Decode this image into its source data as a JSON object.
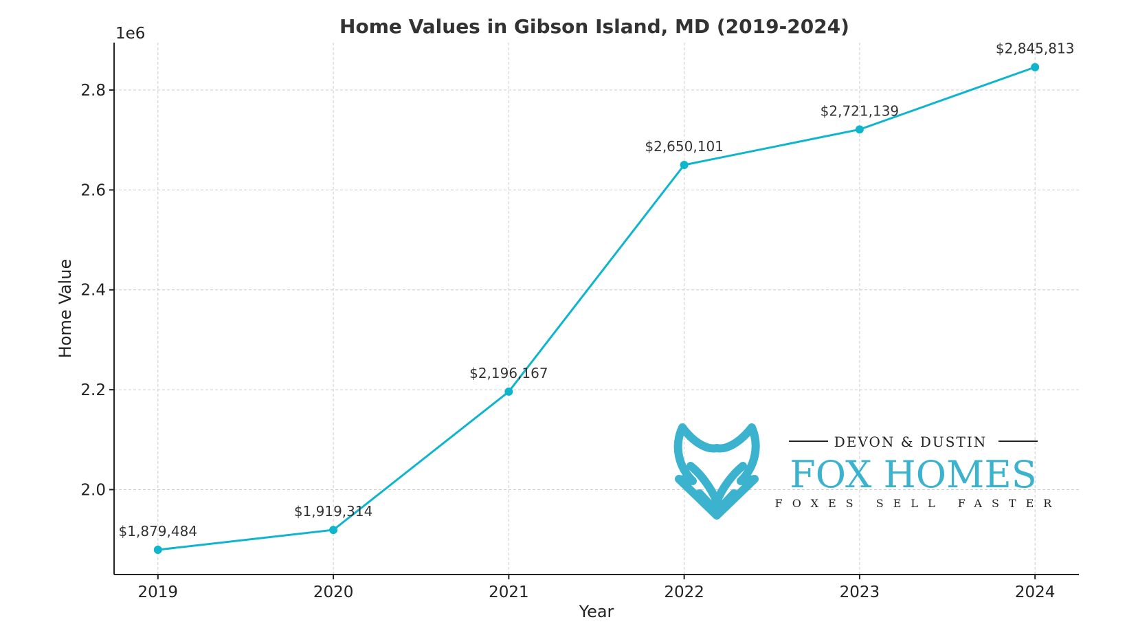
{
  "chart_data": {
    "type": "line",
    "title": "Home Values in Gibson Island, MD (2019-2024)",
    "xlabel": "Year",
    "ylabel": "Home Value",
    "y_offset_label": "1e6",
    "x": [
      2019,
      2020,
      2021,
      2022,
      2023,
      2024
    ],
    "values": [
      1879484,
      1919314,
      2196167,
      2650101,
      2721139,
      2845813
    ],
    "data_labels": [
      "$1,879,484",
      "$1,919,314",
      "$2,196,167",
      "$2,650,101",
      "$2,721,139",
      "$2,845,813"
    ],
    "x_ticks": [
      "2019",
      "2020",
      "2021",
      "2022",
      "2023",
      "2024"
    ],
    "y_ticks": [
      2.0,
      2.2,
      2.4,
      2.6,
      2.8
    ],
    "y_tick_labels": [
      "2.0",
      "2.2",
      "2.4",
      "2.6",
      "2.8"
    ],
    "xlim": [
      2018.75,
      2024.25
    ],
    "ylim": [
      1830000,
      2895000
    ],
    "grid": true,
    "line_color": "#0fb5cc",
    "marker": "circle"
  },
  "logo": {
    "tagline_top": "DEVON & DUSTIN",
    "brand": "FOX HOMES",
    "tagline_bottom": "FOXES SELL FASTER",
    "color": "#3bb3cf",
    "icon": "fox-head-icon"
  }
}
